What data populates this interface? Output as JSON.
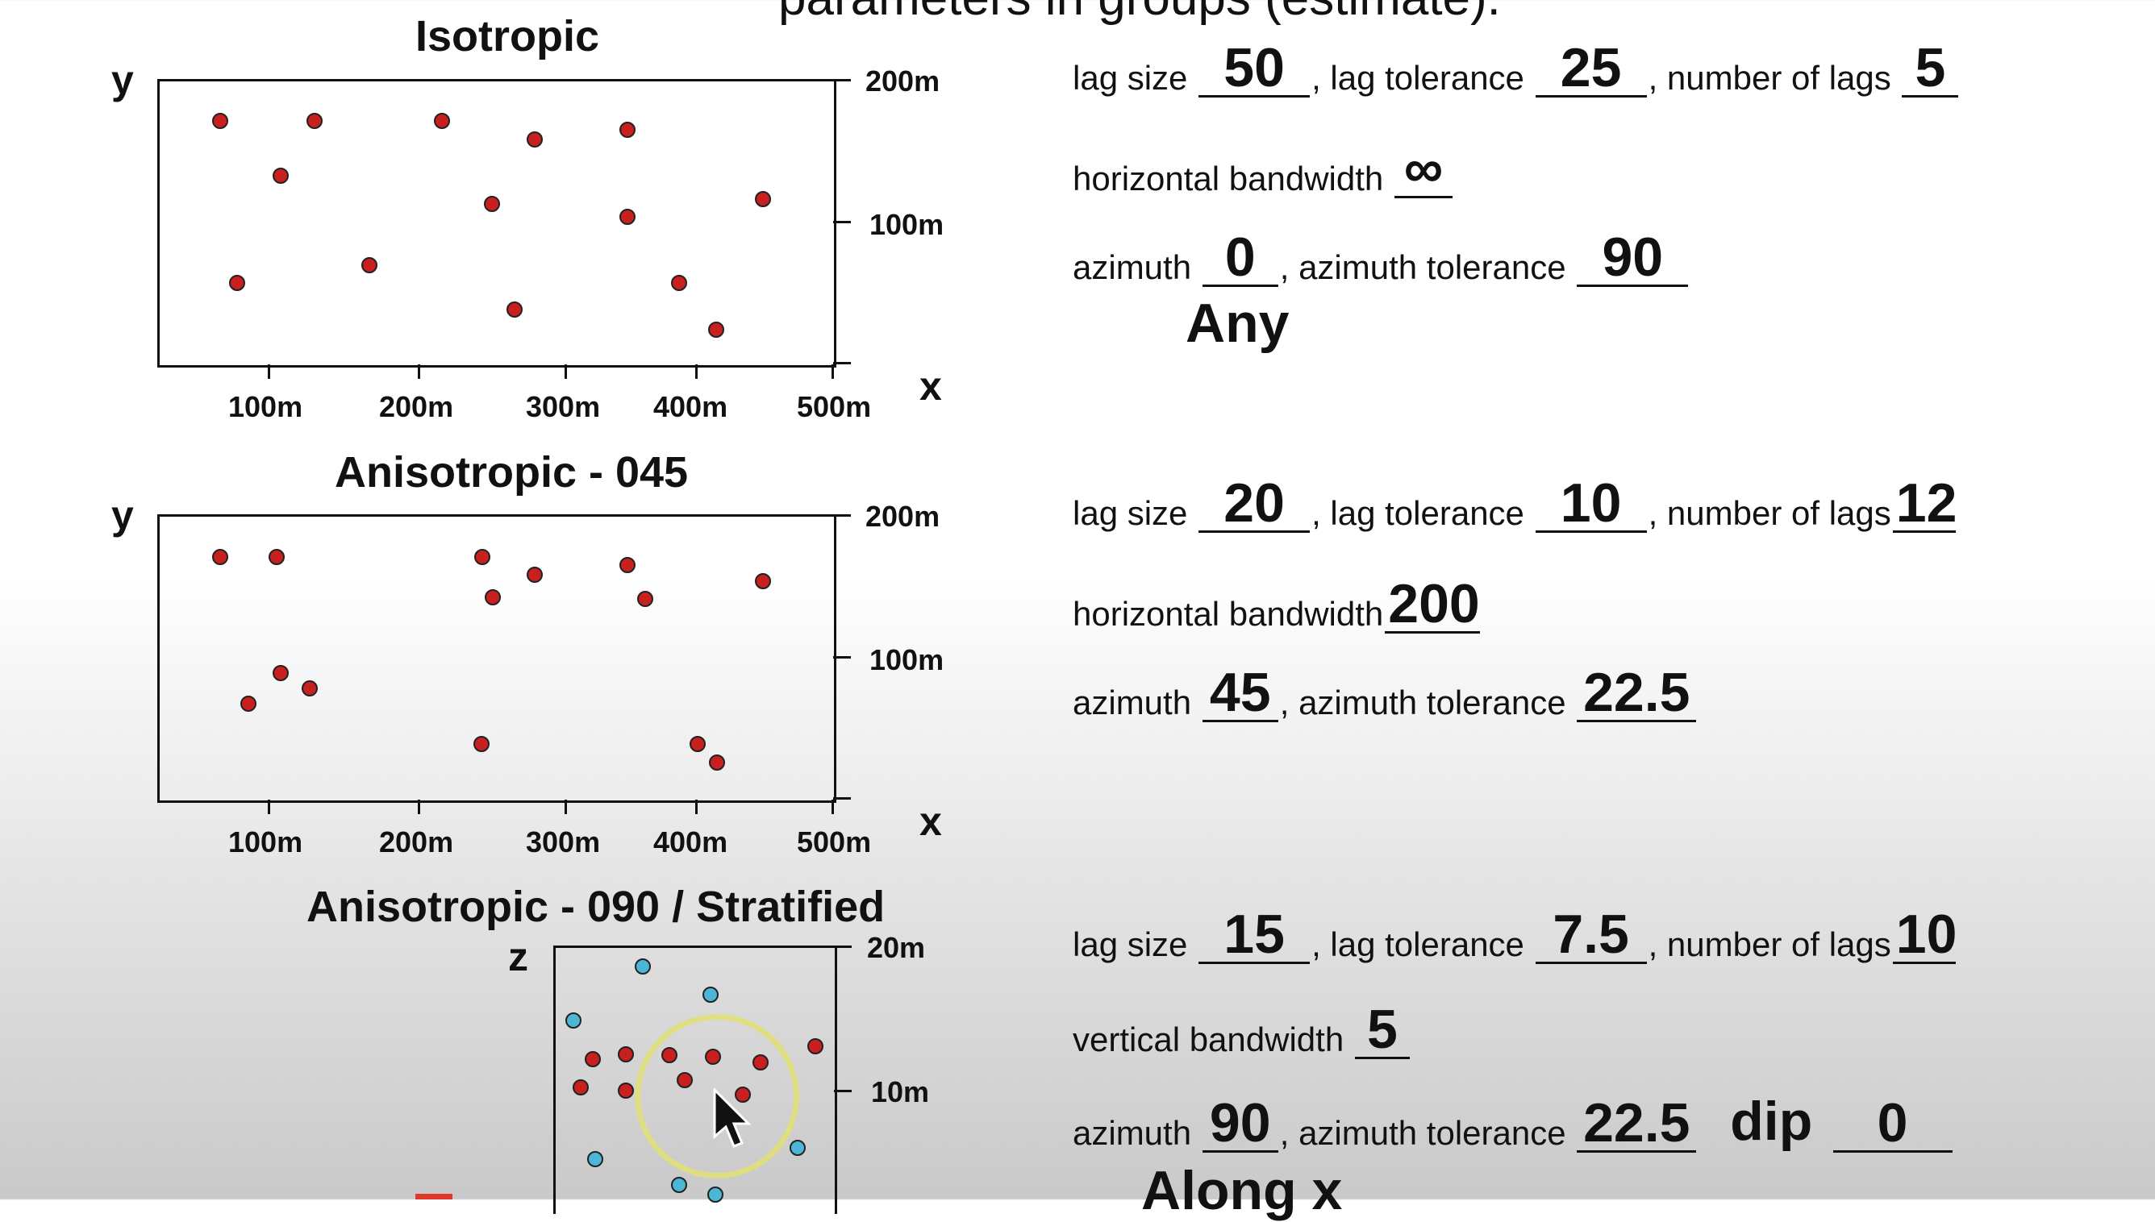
{
  "header": {
    "partial_title": "parameters in groups (estimate)."
  },
  "plots": [
    {
      "title": "Isotropic",
      "y_axis_label": "y",
      "x_axis_label": "x",
      "y_ticks": [
        "200m",
        "100m"
      ],
      "x_ticks": [
        "100m",
        "200m",
        "300m",
        "400m",
        "500m"
      ],
      "point_color": "#c8201e"
    },
    {
      "title": "Anisotropic - 045",
      "y_axis_label": "y",
      "x_axis_label": "x",
      "y_ticks": [
        "200m",
        "100m"
      ],
      "x_ticks": [
        "100m",
        "200m",
        "300m",
        "400m",
        "500m"
      ],
      "point_color": "#c8201e"
    },
    {
      "title": "Anisotropic - 090 / Stratified",
      "y_axis_label": "z",
      "y_ticks": [
        "20m",
        "10m"
      ],
      "point_colors": [
        "#c8201e",
        "#4cb6d6"
      ]
    }
  ],
  "params": [
    {
      "lag_size_label": "lag size",
      "lag_size": "50",
      "lag_tol_label": ", lag tolerance",
      "lag_tol": "25",
      "num_lags_label": ", number of lags",
      "num_lags": "5",
      "bandwidth_label": "horizontal bandwidth",
      "bandwidth": "∞",
      "azimuth_label": "azimuth",
      "azimuth": "0",
      "az_tol_label": ", azimuth tolerance",
      "az_tol": "90",
      "note": "Any"
    },
    {
      "lag_size_label": "lag size",
      "lag_size": "20",
      "lag_tol_label": ", lag tolerance",
      "lag_tol": "10",
      "num_lags_label": ", number of lags",
      "num_lags": "12",
      "bandwidth_label": "horizontal bandwidth",
      "bandwidth": "200",
      "azimuth_label": "azimuth",
      "azimuth": "45",
      "az_tol_label": ", azimuth tolerance",
      "az_tol": "22.5"
    },
    {
      "lag_size_label": "lag size",
      "lag_size": "15",
      "lag_tol_label": ", lag tolerance",
      "lag_tol": "7.5",
      "num_lags_label": ", number of lags",
      "num_lags": "10",
      "bandwidth_label": "vertical bandwidth",
      "bandwidth": "5",
      "azimuth_label": "azimuth",
      "azimuth": "90",
      "az_tol_label": ", azimuth tolerance",
      "az_tol": "22.5",
      "dip_label": "dip",
      "dip": "0",
      "note": "Along x"
    }
  ],
  "colors": {
    "point_red": "#c8201e",
    "point_blue": "#4cb6d6",
    "cursor_ring": "#e1df7a"
  },
  "icons": {
    "cursor": "mouse-pointer-icon"
  }
}
